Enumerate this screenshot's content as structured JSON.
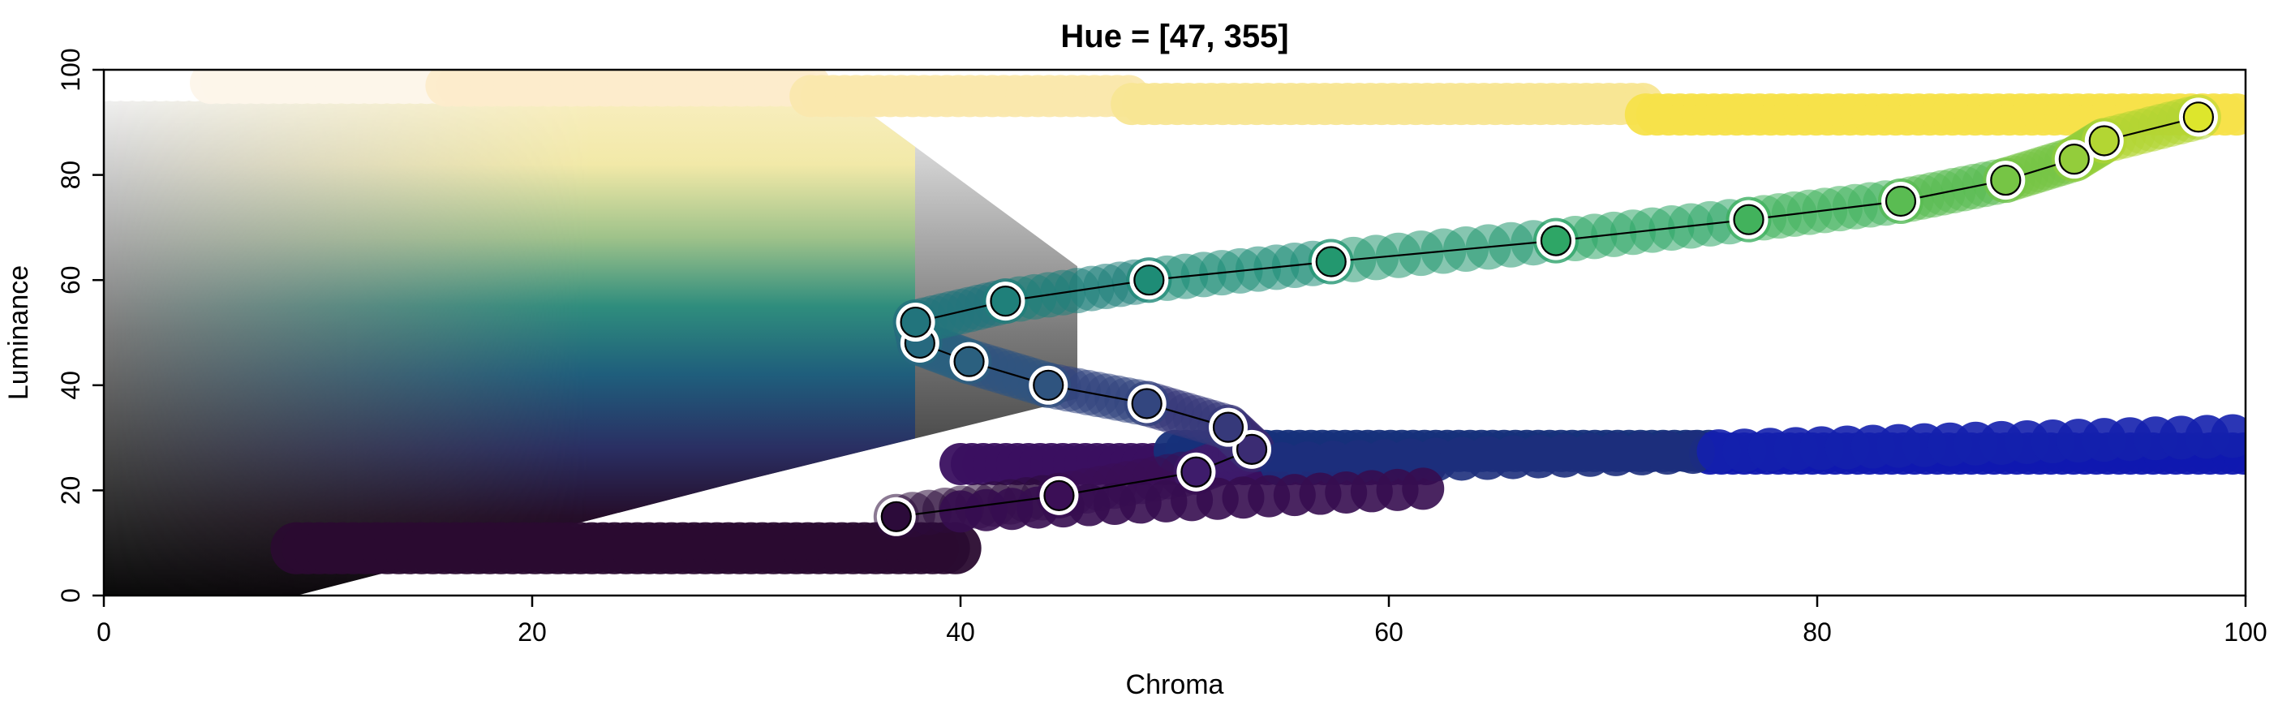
{
  "chart_data": {
    "type": "scatter",
    "title": "Hue = [47, 355]",
    "xlabel": "Chroma",
    "ylabel": "Luminance",
    "xlim": [
      0,
      100
    ],
    "ylim": [
      0,
      100
    ],
    "xticks": [
      "0",
      "20",
      "40",
      "60",
      "80",
      "100"
    ],
    "yticks": [
      "0",
      "20",
      "40",
      "60",
      "80",
      "100"
    ],
    "grid": false,
    "legend": "none",
    "series": [
      {
        "points": [
          {
            "x": 37.0,
            "y": 15.0,
            "color": "#2c0b3a"
          },
          {
            "x": 44.6,
            "y": 19.0,
            "color": "#3b0f56"
          },
          {
            "x": 51.0,
            "y": 23.5,
            "color": "#3e1c6b"
          },
          {
            "x": 53.6,
            "y": 27.8,
            "color": "#3b2c73"
          },
          {
            "x": 52.5,
            "y": 32.0,
            "color": "#36397a"
          },
          {
            "x": 48.7,
            "y": 36.5,
            "color": "#33467f"
          },
          {
            "x": 44.1,
            "y": 40.0,
            "color": "#2f547f"
          },
          {
            "x": 40.4,
            "y": 44.5,
            "color": "#2b607f"
          },
          {
            "x": 38.1,
            "y": 48.0,
            "color": "#27697f"
          },
          {
            "x": 37.9,
            "y": 52.0,
            "color": "#22747c"
          },
          {
            "x": 42.1,
            "y": 56.0,
            "color": "#1f807a"
          },
          {
            "x": 48.8,
            "y": 60.0,
            "color": "#1e8c76"
          },
          {
            "x": 57.3,
            "y": 63.5,
            "color": "#23986f"
          },
          {
            "x": 67.8,
            "y": 67.5,
            "color": "#2ea666"
          },
          {
            "x": 76.8,
            "y": 71.5,
            "color": "#42b25c"
          },
          {
            "x": 83.9,
            "y": 75.0,
            "color": "#5abc52"
          },
          {
            "x": 88.8,
            "y": 79.0,
            "color": "#76c545"
          },
          {
            "x": 92.0,
            "y": 83.0,
            "color": "#93cd3b"
          },
          {
            "x": 93.4,
            "y": 86.5,
            "color": "#b3d633"
          },
          {
            "x": 97.8,
            "y": 91.0,
            "color": "#dde62c"
          }
        ]
      }
    ],
    "background_bands": {
      "upper": [
        {
          "x0": 0,
          "x1": 5,
          "ymin": 96,
          "ymax": 100,
          "color": "#ffffff"
        },
        {
          "x0": 5,
          "x1": 16,
          "ymin": 95,
          "ymax": 100,
          "color": "#fdf6ea"
        },
        {
          "x0": 16,
          "x1": 33,
          "ymin": 94,
          "ymax": 100,
          "color": "#fdeccb"
        },
        {
          "x0": 33,
          "x1": 48,
          "ymin": 93,
          "ymax": 97,
          "color": "#fae8ad"
        },
        {
          "x0": 48,
          "x1": 72,
          "ymin": 91,
          "ymax": 96,
          "color": "#f8e693"
        },
        {
          "x0": 72,
          "x1": 100,
          "ymin": 89,
          "ymax": 94,
          "color": "#f7e14a"
        }
      ],
      "lower": [
        {
          "x0": 9,
          "x1": 40,
          "ymin": 0,
          "ymax": 18,
          "color": "#2a0b30"
        },
        {
          "x0": 40,
          "x1": 62,
          "ymin": 20,
          "ymax": 30,
          "color": "#3a1060"
        },
        {
          "x0": 50,
          "x1": 75,
          "ymin": 22,
          "ymax": 33,
          "color": "#16307a"
        },
        {
          "x0": 75,
          "x1": 100,
          "ymin": 24,
          "ymax": 30,
          "color": "#1018b0"
        }
      ]
    }
  }
}
